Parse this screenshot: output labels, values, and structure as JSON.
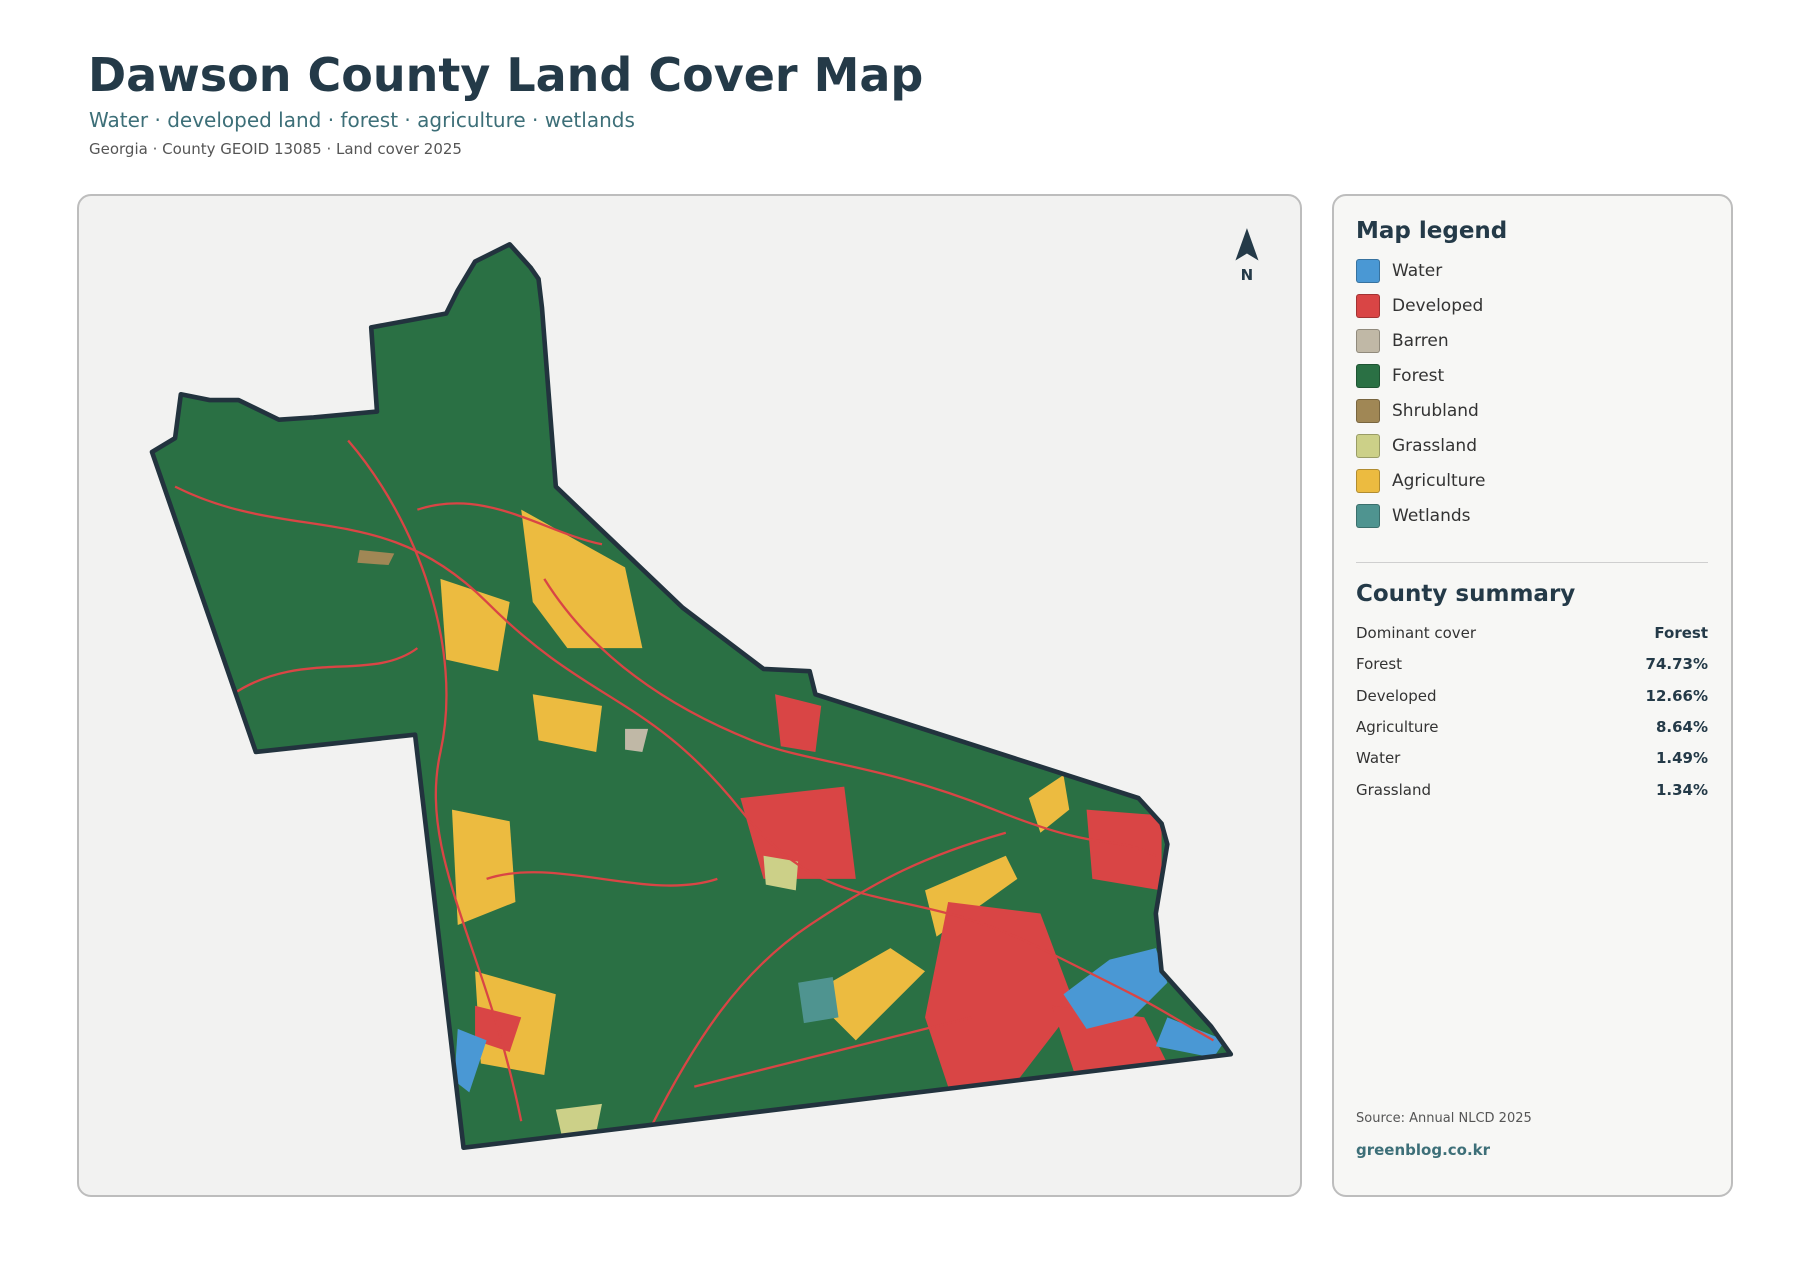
{
  "header": {
    "title": "Dawson County Land Cover Map",
    "subtitle": "Water · developed land · forest · agriculture · wetlands",
    "meta": "Georgia · County GEOID 13085 · Land cover 2025"
  },
  "map": {
    "north_label": "N"
  },
  "legend": {
    "title": "Map legend",
    "items": [
      {
        "label": "Water",
        "color": "#4a98d4"
      },
      {
        "label": "Developed",
        "color": "#d94545"
      },
      {
        "label": "Barren",
        "color": "#c0b8a6"
      },
      {
        "label": "Forest",
        "color": "#2a7044"
      },
      {
        "label": "Shrubland",
        "color": "#a08755"
      },
      {
        "label": "Grassland",
        "color": "#ccd088"
      },
      {
        "label": "Agriculture",
        "color": "#ecbb40"
      },
      {
        "label": "Wetlands",
        "color": "#4f9490"
      }
    ]
  },
  "summary": {
    "title": "County summary",
    "rows": [
      [
        "Dominant cover",
        "Forest"
      ],
      [
        "Forest",
        "74.73%"
      ],
      [
        "Developed",
        "12.66%"
      ],
      [
        "Agriculture",
        "8.64%"
      ],
      [
        "Water",
        "1.49%"
      ],
      [
        "Grassland",
        "1.34%"
      ]
    ]
  },
  "footer": {
    "source": "Source: Annual NLCD 2025",
    "site": "greenblog.co.kr"
  }
}
